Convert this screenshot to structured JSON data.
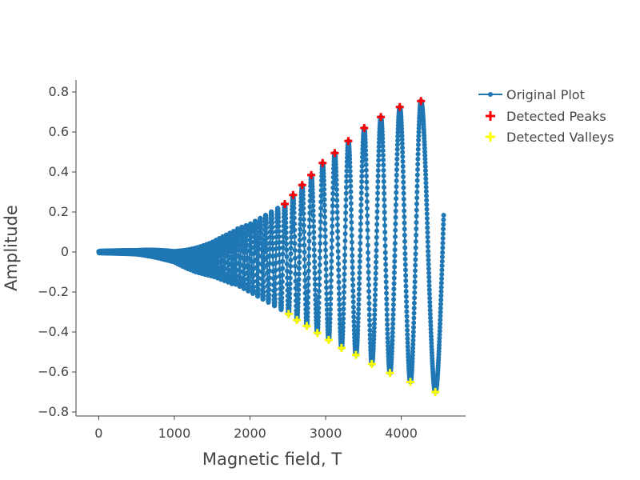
{
  "chart_data": {
    "type": "scatter",
    "xlabel": "Magnetic field, T",
    "ylabel": "Amplitude",
    "xlim": [
      -300,
      4850
    ],
    "ylim": [
      -0.82,
      0.86
    ],
    "x_ticks": [
      0,
      1000,
      2000,
      3000,
      4000
    ],
    "x_tick_labels": [
      "0",
      "1000",
      "2000",
      "3000",
      "4000"
    ],
    "y_ticks": [
      -0.8,
      -0.6,
      -0.4,
      -0.2,
      0,
      0.2,
      0.4,
      0.6,
      0.8
    ],
    "y_tick_labels": [
      "−0.8",
      "−0.6",
      "−0.4",
      "−0.2",
      "0",
      "0.2",
      "0.4",
      "0.6",
      "0.8"
    ],
    "grid": false,
    "legend_position": "top-right",
    "colors": {
      "original": "#1f77b4",
      "peaks": "#ff0000",
      "valleys": "#ffff00"
    },
    "series": [
      {
        "name": "Original Plot",
        "mode": "lines+markers",
        "x_range": [
          0,
          4560
        ],
        "points": 2400,
        "description_values": "dense oscillation, amplitude grows from ~0 near x=0 to ~0.75 near x=4300"
      },
      {
        "name": "Detected Peaks",
        "mode": "markers",
        "marker": "cross",
        "x": [
          2460,
          2570,
          2690,
          2810,
          2960,
          3120,
          3300,
          3510,
          3730,
          3980,
          4260
        ],
        "y": [
          0.24,
          0.285,
          0.335,
          0.385,
          0.445,
          0.495,
          0.555,
          0.62,
          0.675,
          0.725,
          0.755
        ]
      },
      {
        "name": "Detected Valleys",
        "mode": "markers",
        "marker": "cross",
        "x": [
          2510,
          2620,
          2750,
          2890,
          3040,
          3210,
          3400,
          3610,
          3850,
          4120,
          4450
        ],
        "y": [
          -0.31,
          -0.34,
          -0.37,
          -0.405,
          -0.44,
          -0.48,
          -0.515,
          -0.56,
          -0.605,
          -0.65,
          -0.7
        ]
      }
    ]
  }
}
